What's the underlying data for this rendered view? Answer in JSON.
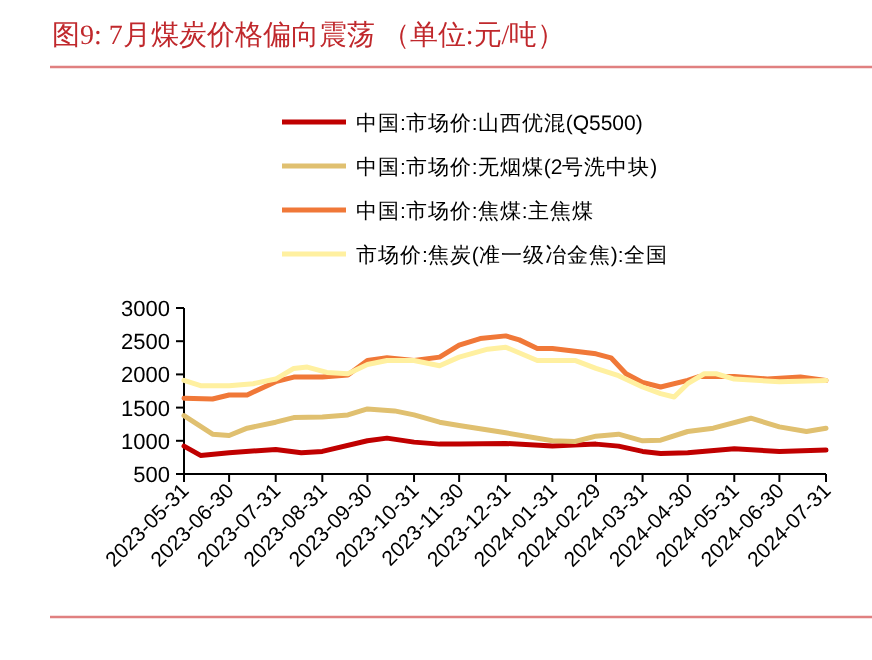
{
  "chart_data": {
    "type": "line",
    "title": "图9:  7月煤炭价格偏向震荡 （单位:元/吨）",
    "xlim": [
      "2023-05-31",
      "2024-07-31"
    ],
    "xticks": [
      "2023-05-31",
      "2023-06-30",
      "2023-07-31",
      "2023-08-31",
      "2023-09-30",
      "2023-10-31",
      "2023-11-30",
      "2023-12-31",
      "2024-01-31",
      "2024-02-29",
      "2024-03-31",
      "2024-04-30",
      "2024-05-31",
      "2024-06-30",
      "2024-07-31"
    ],
    "ylim": [
      500,
      3000
    ],
    "yticks": [
      500,
      1000,
      1500,
      2000,
      2500,
      3000
    ],
    "legend": "top",
    "series": [
      {
        "name": "中国:市场价:山西优混(Q5500)",
        "color": "#c00000",
        "x": [
          "2023-05-31",
          "2023-06-11",
          "2023-06-30",
          "2023-07-31",
          "2023-08-17",
          "2023-08-31",
          "2023-09-30",
          "2023-10-13",
          "2023-10-31",
          "2023-11-17",
          "2023-11-30",
          "2023-12-31",
          "2024-01-31",
          "2024-02-29",
          "2024-03-15",
          "2024-03-31",
          "2024-04-12",
          "2024-04-30",
          "2024-05-31",
          "2024-06-30",
          "2024-07-31"
        ],
        "values": [
          920,
          780,
          820,
          870,
          820,
          840,
          1000,
          1040,
          980,
          950,
          950,
          960,
          920,
          950,
          920,
          840,
          810,
          820,
          880,
          840,
          860
        ]
      },
      {
        "name": "中国:市场价:无烟煤(2号洗中块)",
        "color": "#e0c070",
        "x": [
          "2023-05-31",
          "2023-06-19",
          "2023-06-30",
          "2023-07-12",
          "2023-07-31",
          "2023-08-12",
          "2023-08-31",
          "2023-09-17",
          "2023-09-30",
          "2023-10-18",
          "2023-10-31",
          "2023-11-17",
          "2023-11-30",
          "2023-12-31",
          "2024-01-31",
          "2024-02-15",
          "2024-02-29",
          "2024-03-15",
          "2024-03-31",
          "2024-04-12",
          "2024-04-30",
          "2024-05-17",
          "2024-06-11",
          "2024-06-30",
          "2024-07-18",
          "2024-07-31"
        ],
        "values": [
          1380,
          1100,
          1080,
          1190,
          1280,
          1350,
          1360,
          1390,
          1480,
          1450,
          1390,
          1280,
          1230,
          1120,
          1000,
          990,
          1070,
          1100,
          1000,
          1010,
          1140,
          1190,
          1340,
          1210,
          1140,
          1190
        ]
      },
      {
        "name": "中国:市场价:焦煤:主焦煤",
        "color": "#f07838",
        "x": [
          "2023-05-31",
          "2023-06-19",
          "2023-06-30",
          "2023-07-12",
          "2023-07-31",
          "2023-08-12",
          "2023-08-31",
          "2023-09-17",
          "2023-09-30",
          "2023-10-13",
          "2023-10-31",
          "2023-11-17",
          "2023-11-30",
          "2023-12-14",
          "2023-12-31",
          "2024-01-09",
          "2024-01-21",
          "2024-01-31",
          "2024-02-29",
          "2024-03-10",
          "2024-03-20",
          "2024-03-31",
          "2024-04-12",
          "2024-04-30",
          "2024-05-08",
          "2024-05-31",
          "2024-06-22",
          "2024-07-14",
          "2024-07-31"
        ],
        "values": [
          1640,
          1630,
          1690,
          1690,
          1890,
          1960,
          1960,
          1990,
          2210,
          2250,
          2210,
          2260,
          2440,
          2540,
          2580,
          2520,
          2390,
          2390,
          2310,
          2250,
          2010,
          1880,
          1810,
          1910,
          1970,
          1970,
          1930,
          1960,
          1910
        ]
      },
      {
        "name": "市场价:焦炭(准一级冶金焦):全国",
        "color": "#fff0a0",
        "x": [
          "2023-05-31",
          "2023-06-11",
          "2023-06-30",
          "2023-07-16",
          "2023-07-31",
          "2023-08-12",
          "2023-08-21",
          "2023-09-03",
          "2023-09-17",
          "2023-09-30",
          "2023-10-13",
          "2023-10-31",
          "2023-11-17",
          "2023-11-30",
          "2023-12-19",
          "2023-12-31",
          "2024-01-21",
          "2024-02-15",
          "2024-02-29",
          "2024-03-15",
          "2024-03-31",
          "2024-04-12",
          "2024-04-21",
          "2024-04-30",
          "2024-05-11",
          "2024-05-19",
          "2024-05-31",
          "2024-06-30",
          "2024-07-31"
        ],
        "values": [
          1910,
          1830,
          1830,
          1860,
          1930,
          2090,
          2110,
          2030,
          2010,
          2150,
          2210,
          2210,
          2130,
          2260,
          2380,
          2410,
          2210,
          2210,
          2090,
          1980,
          1810,
          1710,
          1660,
          1860,
          2010,
          2010,
          1930,
          1890,
          1910
        ]
      }
    ]
  }
}
